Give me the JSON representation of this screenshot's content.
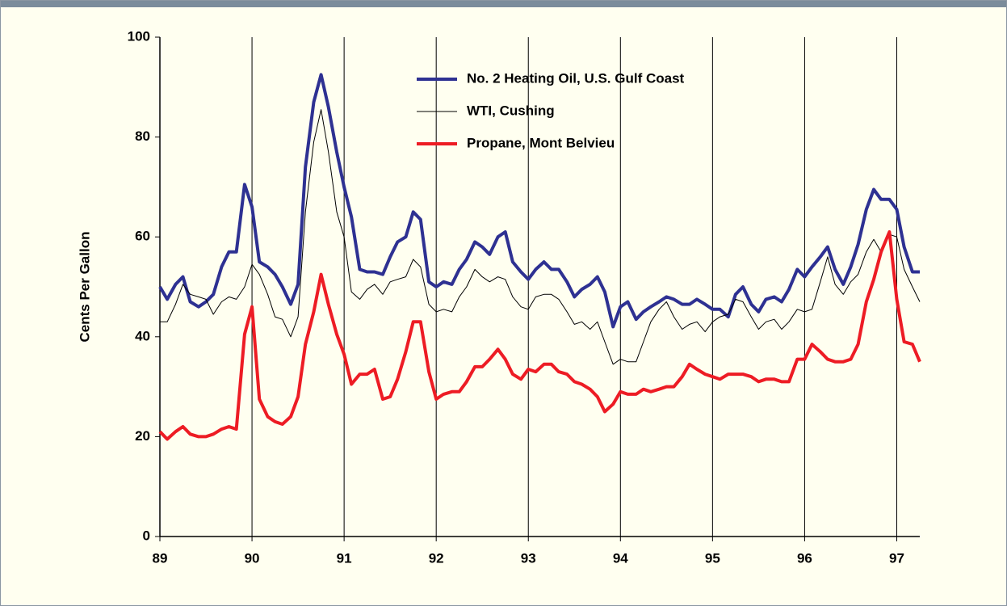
{
  "chart_data": {
    "type": "line",
    "y_label": "Cents Per Gallon",
    "x": [
      89,
      89.08,
      89.17,
      89.25,
      89.33,
      89.42,
      89.5,
      89.58,
      89.67,
      89.75,
      89.83,
      89.92,
      90,
      90.08,
      90.17,
      90.25,
      90.33,
      90.42,
      90.5,
      90.58,
      90.67,
      90.75,
      90.83,
      90.92,
      91,
      91.08,
      91.17,
      91.25,
      91.33,
      91.42,
      91.5,
      91.58,
      91.67,
      91.75,
      91.83,
      91.92,
      92,
      92.08,
      92.17,
      92.25,
      92.33,
      92.42,
      92.5,
      92.58,
      92.67,
      92.75,
      92.83,
      92.92,
      93,
      93.08,
      93.17,
      93.25,
      93.33,
      93.42,
      93.5,
      93.58,
      93.67,
      93.75,
      93.83,
      93.92,
      94,
      94.08,
      94.17,
      94.25,
      94.33,
      94.42,
      94.5,
      94.58,
      94.67,
      94.75,
      94.83,
      94.92,
      95,
      95.08,
      95.17,
      95.25,
      95.33,
      95.42,
      95.5,
      95.58,
      95.67,
      95.75,
      95.83,
      95.92,
      96,
      96.08,
      96.17,
      96.25,
      96.33,
      96.42,
      96.5,
      96.58,
      96.67,
      96.75,
      96.83,
      96.92,
      97,
      97.08,
      97.17,
      97.25
    ],
    "series": [
      {
        "name": "No. 2 Heating Oil, U.S. Gulf Coast",
        "color": "#2e3192",
        "width": 4,
        "values": [
          50,
          47.5,
          50.5,
          52,
          47,
          46,
          47,
          48.5,
          54,
          57,
          57,
          70.5,
          66,
          55,
          54,
          52.5,
          50,
          46.5,
          50.5,
          74,
          87,
          92.5,
          86,
          77,
          70,
          64,
          53.5,
          53,
          53,
          52.5,
          56,
          59,
          60,
          65,
          63.5,
          51,
          50,
          51,
          50.5,
          53.5,
          55.5,
          59,
          58,
          56.5,
          60,
          61,
          55,
          53,
          51.5,
          53.5,
          55,
          53.5,
          53.5,
          51,
          48,
          49.5,
          50.5,
          52,
          49,
          42,
          46,
          47,
          43.5,
          45,
          46,
          47,
          48,
          47.5,
          46.5,
          46.5,
          47.5,
          46.5,
          45.5,
          45.5,
          44,
          48.5,
          50,
          46.5,
          45,
          47.5,
          48,
          47,
          49.5,
          53.5,
          52,
          54,
          56,
          58,
          53.5,
          50.5,
          54,
          58.5,
          65.5,
          69.5,
          67.5,
          67.5,
          65.5,
          58,
          53,
          53
        ]
      },
      {
        "name": "WTI, Cushing",
        "color": "#000000",
        "width": 1,
        "values": [
          43,
          43,
          46.5,
          50.5,
          48.5,
          48,
          47.5,
          44.5,
          47,
          48,
          47.5,
          50,
          54.5,
          52.5,
          48.5,
          44,
          43.5,
          40,
          44,
          65,
          79,
          85.5,
          77,
          65,
          60,
          49,
          47.5,
          49.5,
          50.5,
          48.5,
          51,
          51.5,
          52,
          55.5,
          54,
          46.5,
          45,
          45.5,
          45,
          48,
          50,
          53.5,
          52,
          51,
          52,
          51.5,
          48,
          46,
          45.5,
          48,
          48.5,
          48.5,
          47.5,
          45,
          42.5,
          43,
          41.5,
          43,
          39,
          34.5,
          35.5,
          35,
          35,
          39,
          43,
          45.5,
          47,
          44,
          41.5,
          42.5,
          43,
          41,
          43,
          44,
          44.5,
          47.5,
          47,
          44,
          41.5,
          43,
          43.5,
          41.5,
          43,
          45.5,
          45,
          45.5,
          51,
          56,
          50.5,
          48.5,
          51,
          52.5,
          57,
          59.5,
          57,
          60.5,
          60,
          53.5,
          50,
          47
        ]
      },
      {
        "name": "Propane, Mont Belvieu",
        "color": "#ed1c24",
        "width": 4,
        "values": [
          21,
          19.5,
          21,
          22,
          20.5,
          20,
          20,
          20.5,
          21.5,
          22,
          21.5,
          40.5,
          46,
          27.5,
          24,
          23,
          22.5,
          24,
          28,
          38.5,
          45,
          52.5,
          46.5,
          40.5,
          36.5,
          30.5,
          32.5,
          32.5,
          33.5,
          27.5,
          28,
          31.5,
          37,
          43,
          43,
          33,
          27.5,
          28.5,
          29,
          29,
          31,
          34,
          34,
          35.5,
          37.5,
          35.5,
          32.5,
          31.5,
          33.5,
          33,
          34.5,
          34.5,
          33,
          32.5,
          31,
          30.5,
          29.5,
          28,
          25,
          26.5,
          29,
          28.5,
          28.5,
          29.5,
          29,
          29.5,
          30,
          30,
          32,
          34.5,
          33.5,
          32.5,
          32,
          31.5,
          32.5,
          32.5,
          32.5,
          32,
          31,
          31.5,
          31.5,
          31,
          31,
          35.5,
          35.5,
          38.5,
          37,
          35.5,
          35,
          35,
          35.5,
          38.5,
          47,
          51.5,
          57,
          61,
          47.5,
          39,
          38.5,
          35
        ]
      }
    ],
    "xlim": [
      89,
      97.25
    ],
    "xticks": [
      89,
      90,
      91,
      92,
      93,
      94,
      95,
      96,
      97
    ],
    "ylim": [
      0,
      100
    ],
    "yticks": [
      0,
      20,
      40,
      60,
      80,
      100
    ],
    "grid": "x",
    "legend": "top"
  }
}
